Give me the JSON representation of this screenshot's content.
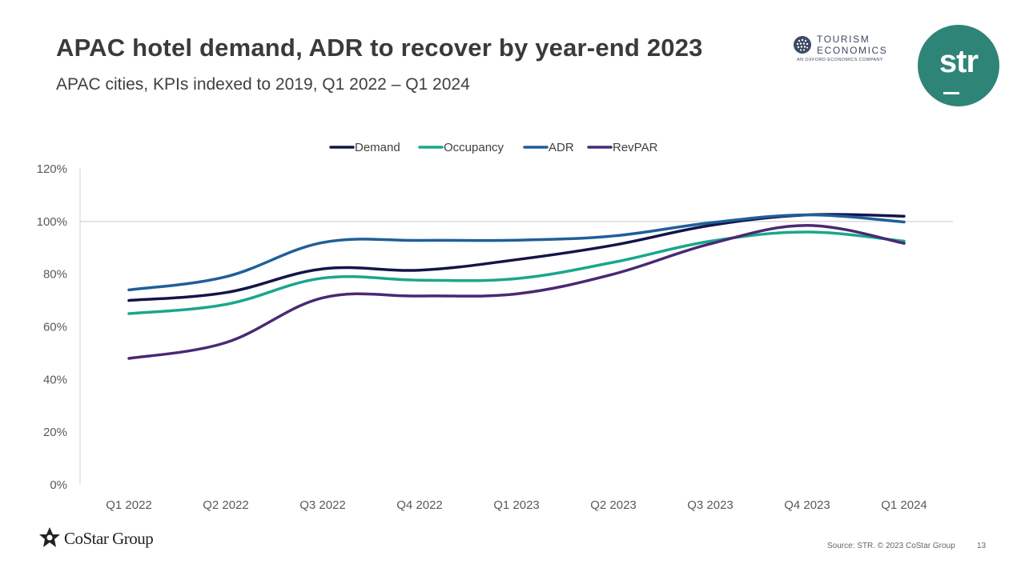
{
  "header": {
    "title": "APAC hotel demand, ADR to recover by year-end 2023",
    "subtitle": "APAC cities, KPIs indexed to 2019, Q1 2022 – Q1 2024"
  },
  "logos": {
    "tourism_line1": "TOURISM",
    "tourism_line2": "ECONOMICS",
    "tourism_line3": "AN OXFORD ECONOMICS COMPANY",
    "str": "str",
    "costar": "CoStar Group"
  },
  "footer": {
    "source": "Source: STR. © 2023 CoStar Group",
    "page": "13"
  },
  "colors": {
    "demand": "#14144a",
    "occupancy": "#1aa68c",
    "adr": "#1f5f99",
    "revpar": "#4b2874",
    "str_brand": "#2e8577"
  },
  "chart_data": {
    "type": "line",
    "categories": [
      "Q1 2022",
      "Q2 2022",
      "Q3 2022",
      "Q4 2022",
      "Q1 2023",
      "Q2 2023",
      "Q3 2023",
      "Q4 2023",
      "Q1 2024"
    ],
    "series": [
      {
        "name": "Demand",
        "values": [
          70,
          73,
          82,
          81.5,
          85.5,
          91,
          98.5,
          102.5,
          102
        ]
      },
      {
        "name": "Occupancy",
        "values": [
          65,
          68.5,
          78.5,
          77.7,
          78.3,
          84.5,
          92.5,
          96,
          92.5
        ]
      },
      {
        "name": "ADR",
        "values": [
          74,
          79,
          92,
          92.8,
          92.9,
          94.5,
          99.5,
          102.5,
          99.8
        ]
      },
      {
        "name": "RevPAR",
        "values": [
          48,
          54,
          71,
          71.7,
          72.5,
          80,
          91.5,
          98.5,
          91.7
        ]
      }
    ],
    "yticks": [
      "0%",
      "20%",
      "40%",
      "60%",
      "80%",
      "100%",
      "120%"
    ],
    "ylim": [
      0,
      120
    ],
    "reference_line": 100,
    "legend_position": "top-center",
    "grid": false
  }
}
